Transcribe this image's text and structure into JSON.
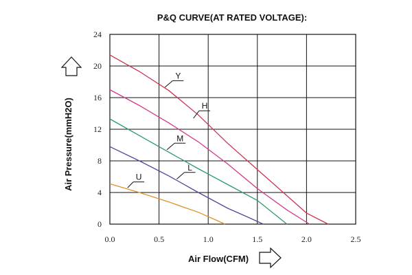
{
  "chart_data": {
    "type": "line",
    "title": "P&Q CURVE(AT RATED VOLTAGE):",
    "xlabel": "Air Flow(CFM)",
    "ylabel": "Air Pressure(mmH2O)",
    "xlim": [
      0.0,
      2.5
    ],
    "ylim": [
      0,
      24
    ],
    "x_ticks": [
      "0.0",
      "0.5",
      "1.0",
      "1.5",
      "2.0",
      "2.5"
    ],
    "y_ticks": [
      "0",
      "4",
      "8",
      "12",
      "16",
      "20",
      "24"
    ],
    "grid": true,
    "series": [
      {
        "name": "Y",
        "color": "#c8344e",
        "points": [
          [
            0.0,
            21.4
          ],
          [
            0.3,
            19.3
          ],
          [
            0.6,
            16.9
          ],
          [
            0.9,
            13.8
          ],
          [
            1.2,
            10.2
          ],
          [
            1.5,
            6.9
          ],
          [
            1.8,
            3.6
          ],
          [
            2.0,
            1.4
          ],
          [
            2.22,
            0.0
          ]
        ]
      },
      {
        "name": "H",
        "color": "#d23a8a",
        "points": [
          [
            0.0,
            17.0
          ],
          [
            0.3,
            15.0
          ],
          [
            0.6,
            12.8
          ],
          [
            0.9,
            10.4
          ],
          [
            1.2,
            7.6
          ],
          [
            1.5,
            4.5
          ],
          [
            1.8,
            1.8
          ],
          [
            2.03,
            0.0
          ]
        ]
      },
      {
        "name": "M",
        "color": "#2a9a6a",
        "points": [
          [
            0.0,
            13.3
          ],
          [
            0.3,
            11.2
          ],
          [
            0.6,
            9.1
          ],
          [
            0.9,
            7.0
          ],
          [
            1.2,
            5.0
          ],
          [
            1.5,
            3.0
          ],
          [
            1.8,
            0.0
          ]
        ]
      },
      {
        "name": "L",
        "color": "#4a4a9a",
        "points": [
          [
            0.0,
            9.8
          ],
          [
            0.3,
            8.0
          ],
          [
            0.6,
            6.1
          ],
          [
            0.9,
            4.0
          ],
          [
            1.2,
            2.0
          ],
          [
            1.4,
            0.9
          ],
          [
            1.56,
            0.0
          ]
        ]
      },
      {
        "name": "U",
        "color": "#e0902a",
        "points": [
          [
            0.0,
            5.1
          ],
          [
            0.3,
            4.0
          ],
          [
            0.6,
            2.8
          ],
          [
            0.9,
            1.5
          ],
          [
            1.1,
            0.4
          ],
          [
            1.17,
            0.0
          ]
        ]
      }
    ],
    "curve_labels": [
      {
        "text": "Y",
        "x": 0.68,
        "y": 18.4,
        "leader_end": [
          0.56,
          17.3
        ]
      },
      {
        "text": "H",
        "x": 0.95,
        "y": 14.6,
        "leader_end": [
          0.85,
          13.4
        ]
      },
      {
        "text": "M",
        "x": 0.7,
        "y": 10.5,
        "leader_end": [
          0.58,
          9.4
        ]
      },
      {
        "text": "L",
        "x": 0.8,
        "y": 6.8,
        "leader_end": [
          0.68,
          5.7
        ]
      },
      {
        "text": "U",
        "x": 0.28,
        "y": 5.6,
        "leader_end": [
          0.18,
          4.6
        ]
      }
    ]
  }
}
